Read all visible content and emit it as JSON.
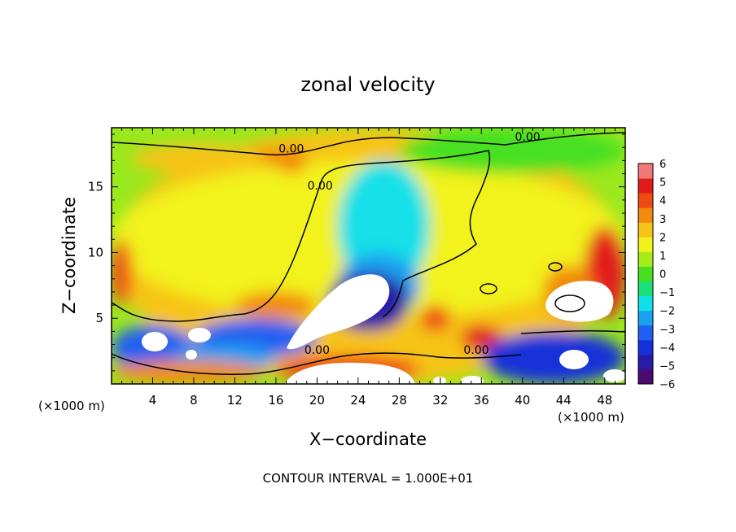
{
  "chart_data": {
    "type": "heatmap",
    "title": "zonal velocity",
    "xlabel": "X−coordinate",
    "ylabel": "Z−coordinate",
    "x_unit": "(×1000 m)",
    "x_unit_right": "(×1000 m)",
    "footer": "CONTOUR INTERVAL = 1.000E+01",
    "xlim": [
      0,
      50
    ],
    "ylim": [
      0,
      19.5
    ],
    "x_ticks": [
      4,
      8,
      12,
      16,
      20,
      24,
      28,
      32,
      36,
      40,
      44,
      48
    ],
    "y_ticks": [
      5,
      10,
      15
    ],
    "colorbar": {
      "min": -6,
      "max": 6,
      "labels": [
        6,
        5,
        4,
        3,
        2,
        1,
        0,
        -1,
        -2,
        -3,
        -4,
        -5,
        -6
      ],
      "colors": [
        "#4a0a6e",
        "#2a1aa8",
        "#1530d8",
        "#2060f0",
        "#1aa0f0",
        "#12e0e8",
        "#1ae07a",
        "#46e020",
        "#a6ec1a",
        "#f2f21a",
        "#f6c414",
        "#f28a10",
        "#ef4a12",
        "#e31a1a",
        "#f07878"
      ]
    },
    "contour_labels": [
      {
        "text": "0.00",
        "x": 17.5,
        "z": 17.6
      },
      {
        "text": "0.00",
        "x": 40.5,
        "z": 18.5
      },
      {
        "text": "0.00",
        "x": 20.3,
        "z": 14.8
      },
      {
        "text": "0.00",
        "x": 20,
        "z": 2.3
      },
      {
        "text": "0.00",
        "x": 35.5,
        "z": 2.3
      }
    ],
    "features": [
      {
        "value": 0,
        "x": [
          0,
          50
        ],
        "z": [
          0,
          19.5
        ]
      },
      {
        "value": 2,
        "x": [
          0,
          50
        ],
        "z": [
          0,
          19.5
        ]
      },
      {
        "value": 1.5,
        "x": [
          0,
          50
        ],
        "z": [
          5,
          17
        ]
      },
      {
        "value": 3.5,
        "x": [
          16,
          19
        ],
        "z": [
          16,
          18
        ]
      },
      {
        "value": 3,
        "x": [
          10,
          18
        ],
        "z": [
          16.5,
          18
        ]
      },
      {
        "value": 2.5,
        "x": [
          2,
          15
        ],
        "z": [
          16,
          18.3
        ]
      },
      {
        "value": 0.2,
        "x": [
          28,
          50
        ],
        "z": [
          16,
          19.5
        ]
      },
      {
        "value": -1.5,
        "x": [
          22,
          31
        ],
        "z": [
          7,
          17
        ]
      },
      {
        "value": -2.5,
        "x": [
          22,
          30
        ],
        "z": [
          5,
          10
        ]
      },
      {
        "value": -4.5,
        "x": [
          21,
          29
        ],
        "z": [
          4,
          8.5
        ]
      },
      {
        "value": 4,
        "x": [
          0,
          2
        ],
        "z": [
          6,
          11
        ]
      },
      {
        "value": 4.5,
        "x": [
          46,
          50
        ],
        "z": [
          5,
          12
        ]
      },
      {
        "value": 3.5,
        "x": [
          42,
          47
        ],
        "z": [
          5,
          9
        ]
      },
      {
        "value": 3,
        "x": [
          12,
          20
        ],
        "z": [
          5,
          7
        ]
      },
      {
        "value": 4,
        "x": [
          30,
          33
        ],
        "z": [
          4,
          6
        ]
      },
      {
        "value": -3,
        "x": [
          8,
          20
        ],
        "z": [
          2,
          5
        ]
      },
      {
        "value": -3.5,
        "x": [
          0,
          8
        ],
        "z": [
          1,
          4.5
        ]
      },
      {
        "value": 4.5,
        "x": [
          34,
          38
        ],
        "z": [
          2.5,
          4.5
        ]
      },
      {
        "value": -4,
        "x": [
          36,
          50
        ],
        "z": [
          0,
          4
        ]
      },
      {
        "value": 4,
        "x": [
          16,
          30
        ],
        "z": [
          0,
          2.2
        ]
      },
      {
        "value": -2.5,
        "x": [
          6,
          16
        ],
        "z": [
          1,
          3
        ]
      },
      {
        "value": 3,
        "x": [
          0,
          15
        ],
        "z": [
          0,
          1.8
        ]
      }
    ]
  }
}
